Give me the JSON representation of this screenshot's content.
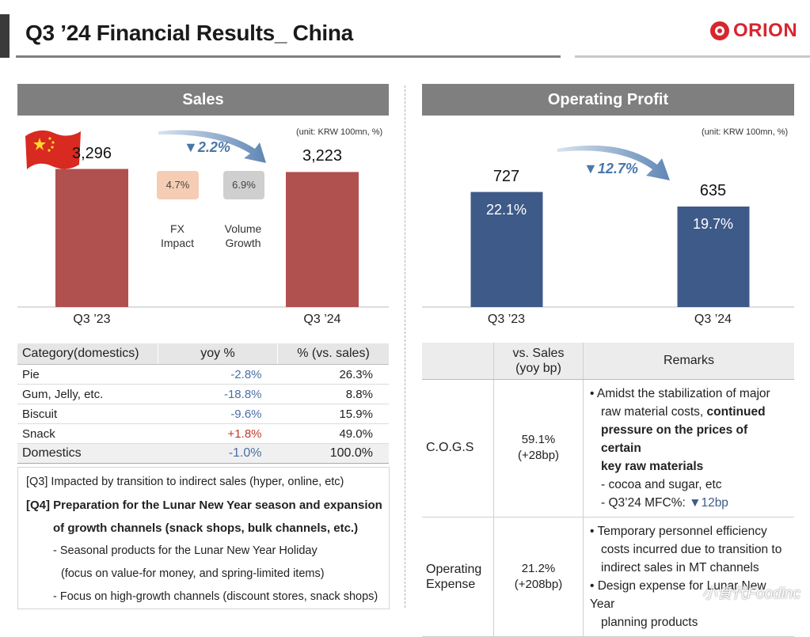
{
  "header": {
    "title": "Q3 ’24 Financial Results_ China",
    "logo_text": "ORION",
    "logo_color": "#d7262e"
  },
  "sales": {
    "section_title": "Sales",
    "unit": "(unit: KRW 100mn, %)",
    "growth": "▼2.2%",
    "fx_chip": "4.7%",
    "fx_label_1": "FX",
    "fx_label_2": "Impact",
    "vol_chip": "6.9%",
    "vol_label_1": "Volume",
    "vol_label_2": "Growth",
    "value_labels": [
      "3,296",
      "3,223"
    ],
    "bar_color": "#b0504f"
  },
  "profit": {
    "section_title": "Operating Profit",
    "unit": "(unit: KRW 100mn, %)",
    "growth": "▼12.7%",
    "value_labels": [
      "727",
      "635"
    ],
    "margin_labels": [
      "22.1%",
      "19.7%"
    ],
    "bar_color": "#3e5a88"
  },
  "chart_data": [
    {
      "type": "bar",
      "title": "Sales",
      "categories": [
        "Q3 ’23",
        "Q3 ’24"
      ],
      "values": [
        3296,
        3223
      ],
      "ylim": [
        0,
        3400
      ]
    },
    {
      "type": "bar",
      "title": "Operating Profit",
      "categories": [
        "Q3 ’23",
        "Q3 ’24"
      ],
      "values": [
        727,
        635
      ],
      "ylim": [
        0,
        900
      ]
    }
  ],
  "category_table": {
    "headers": [
      "Category(domestics)",
      "yoy %",
      "% (vs. sales)"
    ],
    "rows": [
      {
        "name": "Pie",
        "yoy": "-2.8%",
        "share": "26.3%",
        "sign": "neg"
      },
      {
        "name": "Gum, Jelly, etc.",
        "yoy": "-18.8%",
        "share": "8.8%",
        "sign": "neg"
      },
      {
        "name": "Biscuit",
        "yoy": "-9.6%",
        "share": "15.9%",
        "sign": "neg"
      },
      {
        "name": "Snack",
        "yoy": "+1.8%",
        "share": "49.0%",
        "sign": "pos"
      },
      {
        "name": "Domestics",
        "yoy": "-1.0%",
        "share": "100.0%",
        "sign": "neg"
      }
    ]
  },
  "notes": {
    "line1": "[Q3] Impacted by transition to indirect sales (hyper, online, etc)",
    "line2": "[Q4] Preparation for the Lunar New Year season and  expansion",
    "line3": "of growth channels (snack shops, bulk channels, etc.)",
    "line4": "- Seasonal products for the Lunar New Year Holiday",
    "line5": "(focus on value-for money, and spring-limited items)",
    "line6": "- Focus on high-growth channels (discount stores, snack shops)"
  },
  "remarks_table": {
    "headers": [
      "",
      "vs. Sales\n(yoy bp)",
      "Remarks"
    ],
    "header_vs_1": "vs. Sales",
    "header_vs_2": "(yoy bp)",
    "cogs": {
      "label": "C.O.G.S",
      "val1": "59.1%",
      "val2": "(+28bp)",
      "r1a": "• Amidst the stabilization of major",
      "r1b": "raw material costs, ",
      "r1b_bold": "continued",
      "r1c": "pressure on the prices of certain",
      "r1d": "key raw materials",
      "r2": "- cocoa and sugar, etc",
      "r3a": "- Q3’24 MFC%: ",
      "r3b": "▼12bp"
    },
    "opex": {
      "label_1": "Operating",
      "label_2": "Expense",
      "val1": "21.2%",
      "val2": "(+208bp)",
      "r1": "• Temporary personnel efficiency",
      "r2": "costs incurred due to transition to",
      "r3": "indirect sales in MT channels",
      "r4": "• Design expense for Lunar New Year",
      "r5": "planning products"
    }
  },
  "watermark": "小食代Foodinc"
}
